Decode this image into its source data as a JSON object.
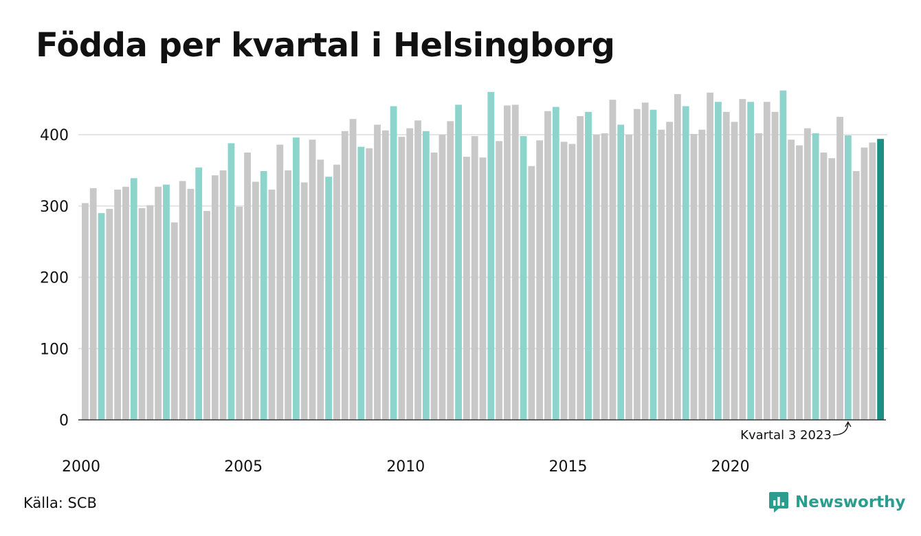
{
  "title": "Födda per kvartal i Helsingborg",
  "source": "Källa: SCB",
  "brand": {
    "name": "Newsworthy",
    "icon": "newsworthy-logo-icon"
  },
  "colors": {
    "other": "#c8c8c8",
    "q3": "#8dd4cc",
    "latest": "#1a8f82",
    "grid": "#e4e4e4",
    "axis": "#333333"
  },
  "chart_data": {
    "type": "bar",
    "title": "Födda per kvartal i Helsingborg",
    "xlabel": "",
    "ylabel": "",
    "ylim": [
      0,
      480
    ],
    "yticks": [
      0,
      100,
      200,
      300,
      400
    ],
    "xticks": [
      2000,
      2005,
      2010,
      2015,
      2020
    ],
    "grid": true,
    "start": {
      "year": 2000,
      "quarter": 1
    },
    "highlight_quarter": 3,
    "annotation": {
      "text": "Kvartal 3 2023",
      "year": 2023,
      "quarter": 3
    },
    "values": [
      304,
      325,
      290,
      296,
      323,
      327,
      339,
      297,
      301,
      327,
      330,
      277,
      335,
      324,
      354,
      293,
      343,
      350,
      388,
      299,
      375,
      334,
      349,
      323,
      386,
      350,
      396,
      333,
      393,
      365,
      341,
      358,
      405,
      422,
      383,
      381,
      414,
      406,
      440,
      397,
      409,
      420,
      405,
      375,
      400,
      419,
      442,
      369,
      398,
      368,
      460,
      391,
      441,
      442,
      398,
      356,
      392,
      433,
      439,
      390,
      387,
      426,
      432,
      400,
      402,
      449,
      414,
      400,
      436,
      445,
      435,
      407,
      418,
      457,
      440,
      401,
      407,
      459,
      446,
      432,
      418,
      450,
      446,
      402,
      446,
      432,
      462,
      393,
      385,
      409,
      402,
      375,
      367,
      425,
      399,
      349,
      382,
      389,
      394
    ]
  }
}
